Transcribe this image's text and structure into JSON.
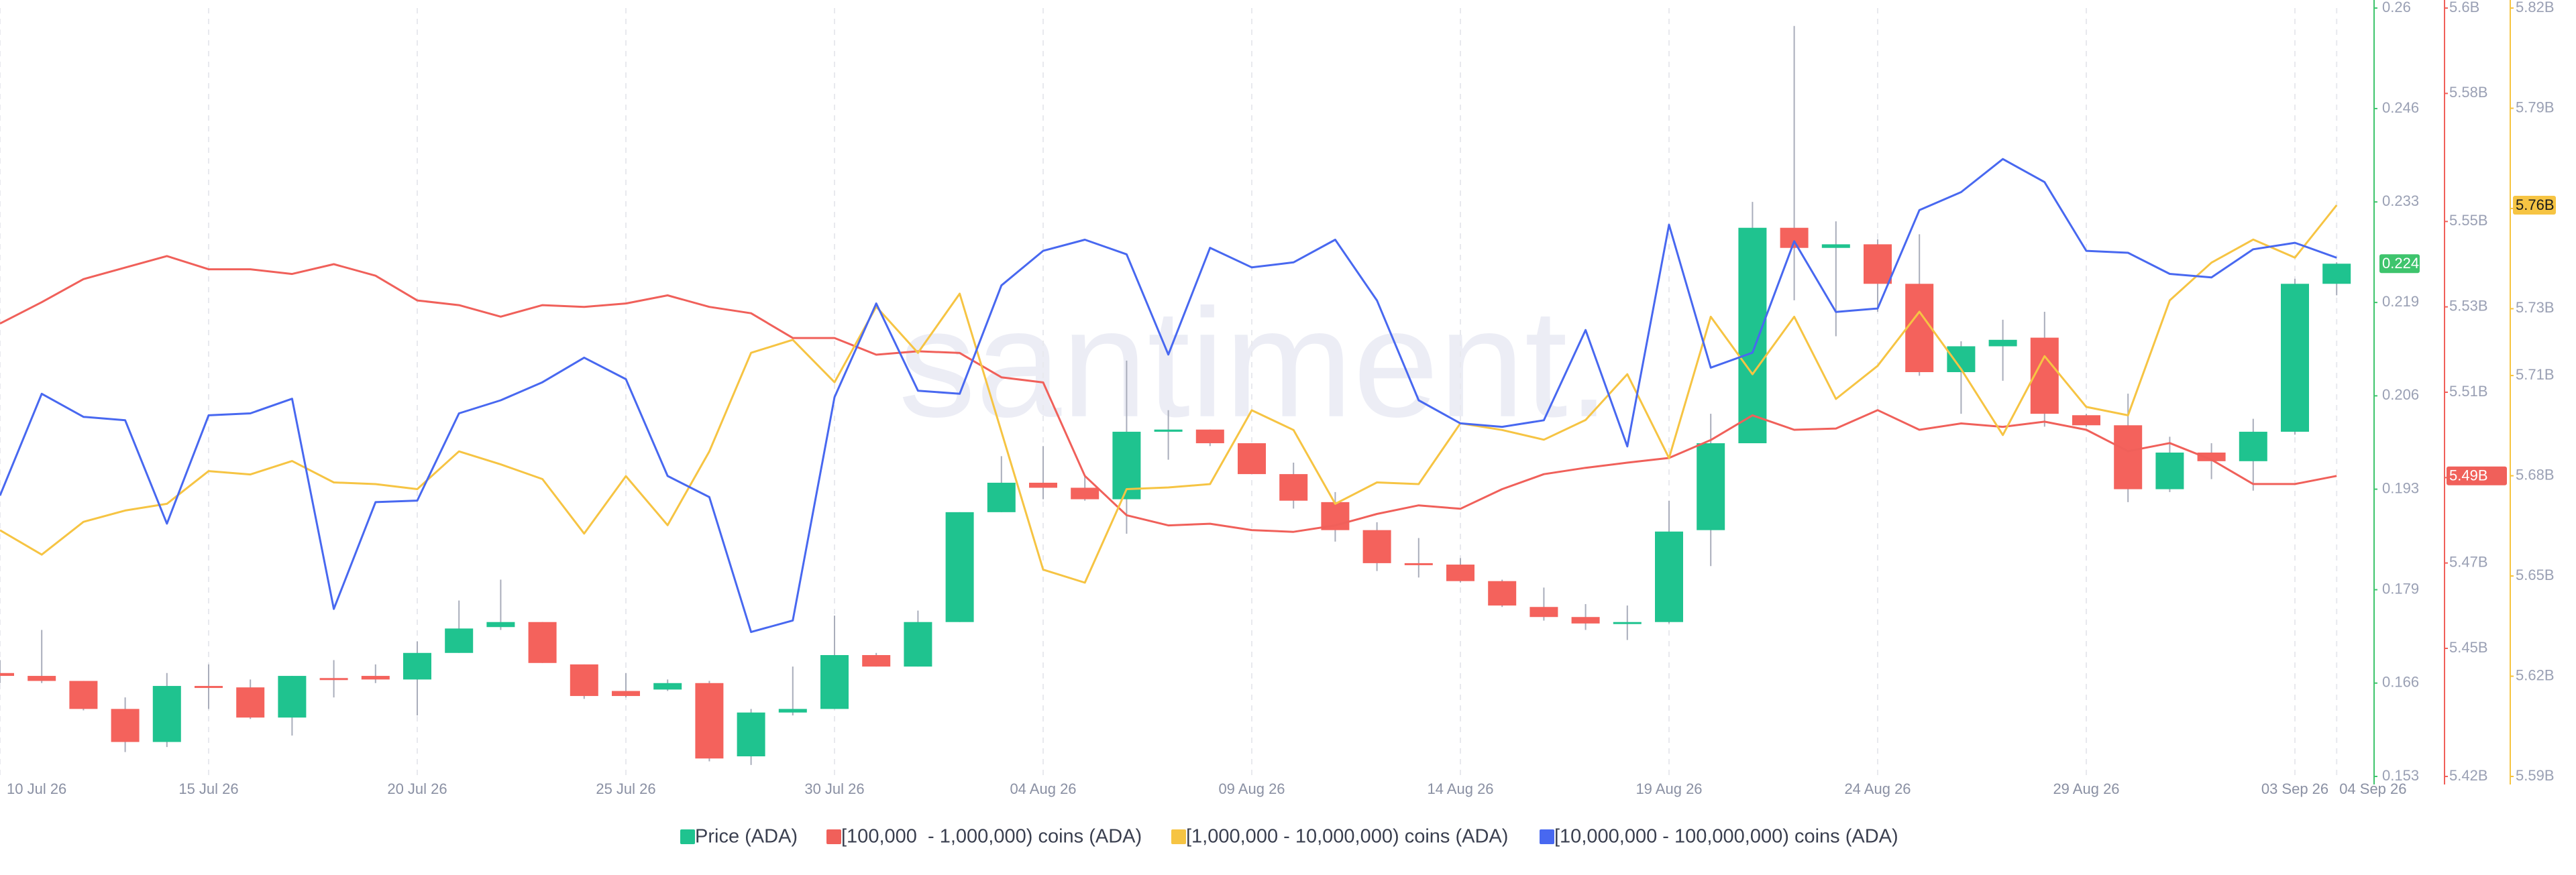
{
  "chart_data": {
    "type": "candlestick",
    "watermark": "santiment.",
    "grid": true,
    "categories": [
      "10 Jul 26",
      null,
      null,
      null,
      null,
      "15 Jul 26",
      null,
      null,
      null,
      null,
      "20 Jul 26",
      null,
      null,
      null,
      null,
      "25 Jul 26",
      null,
      null,
      null,
      null,
      "30 Jul 26",
      null,
      null,
      null,
      null,
      "04 Aug 26",
      null,
      null,
      null,
      null,
      "09 Aug 26",
      null,
      null,
      null,
      null,
      "14 Aug 26",
      null,
      null,
      null,
      null,
      "19 Aug 26",
      null,
      null,
      null,
      null,
      "24 Aug 26",
      null,
      null,
      null,
      null,
      "29 Aug 26",
      null,
      null,
      null,
      null,
      "03 Sep 26",
      "04 Sep 26"
    ],
    "ylim": [
      0.153,
      0.26
    ],
    "yticks": [
      0.26,
      0.246,
      0.233,
      0.219,
      0.206,
      0.193,
      0.179,
      0.166,
      0.153
    ],
    "y2lim": [
      5420000000,
      5600000000
    ],
    "y2ticks": [
      {
        "value": 5600000000,
        "label": "5.6B"
      },
      {
        "value": 5580000000,
        "label": "5.58B"
      },
      {
        "value": 5550000000,
        "label": "5.55B"
      },
      {
        "value": 5530000000,
        "label": "5.53B"
      },
      {
        "value": 5510000000,
        "label": "5.51B"
      },
      {
        "value": 5490000000,
        "label": "5.49B"
      },
      {
        "value": 5470000000,
        "label": "5.47B"
      },
      {
        "value": 5450000000,
        "label": "5.45B"
      },
      {
        "value": 5420000000,
        "label": "5.42B"
      }
    ],
    "y3lim": [
      5590000000,
      5820000000
    ],
    "y3ticks": [
      {
        "value": 5820000000,
        "label": "5.82B"
      },
      {
        "value": 5790000000,
        "label": "5.79B"
      },
      {
        "value": 5760000000,
        "label": "5.76B"
      },
      {
        "value": 5730000000,
        "label": "5.73B"
      },
      {
        "value": 5710000000,
        "label": "5.71B"
      },
      {
        "value": 5680000000,
        "label": "5.68B"
      },
      {
        "value": 5650000000,
        "label": "5.65B"
      },
      {
        "value": 5620000000,
        "label": "5.62B"
      },
      {
        "value": 5590000000,
        "label": "5.59B"
      }
    ],
    "y4lim": [
      11500000000,
      11700000000
    ],
    "series": [
      {
        "name": "Price (ADA)",
        "type": "candlestick",
        "axis": "y",
        "color": "#1fc38f",
        "down_color": "#f4625c",
        "axis_color": "#3ec46d",
        "last_label": "0.224",
        "open": [
          0.1674,
          0.167,
          0.1663,
          0.1624,
          0.1578,
          0.1656,
          0.1654,
          0.1612,
          0.1667,
          0.167,
          0.1665,
          0.1702,
          0.1738,
          0.1745,
          0.1686,
          0.1649,
          0.1651,
          0.166,
          0.1558,
          0.1619,
          0.1624,
          0.1699,
          0.1683,
          0.1745,
          0.1898,
          0.1939,
          0.1932,
          0.1916,
          0.201,
          0.2013,
          0.1994,
          0.1951,
          0.1912,
          0.1873,
          0.1827,
          0.1825,
          0.1802,
          0.1766,
          0.1752,
          0.1743,
          0.1745,
          0.1873,
          0.1994,
          0.2294,
          0.2266,
          0.2271,
          0.2216,
          0.2093,
          0.2129,
          0.2141,
          0.2033,
          0.2019,
          0.193,
          0.1981,
          0.1969,
          0.201,
          0.2216
        ],
        "high": [
          0.1692,
          0.1734,
          0.1663,
          0.164,
          0.1674,
          0.1686,
          0.1665,
          0.167,
          0.1692,
          0.1686,
          0.1718,
          0.1775,
          0.1804,
          0.1745,
          0.1686,
          0.1674,
          0.1665,
          0.1663,
          0.1624,
          0.1683,
          0.1754,
          0.1702,
          0.1761,
          0.1898,
          0.1976,
          0.199,
          0.1949,
          0.2109,
          0.204,
          0.2013,
          0.1994,
          0.1967,
          0.1926,
          0.1884,
          0.1862,
          0.1834,
          0.1804,
          0.1793,
          0.177,
          0.1768,
          0.1914,
          0.2035,
          0.233,
          0.2575,
          0.2303,
          0.2278,
          0.2285,
          0.2136,
          0.2166,
          0.2177,
          0.2035,
          0.2063,
          0.2003,
          0.1994,
          0.2028,
          0.2223,
          0.2246
        ],
        "low": [
          0.166,
          0.166,
          0.1622,
          0.1564,
          0.1571,
          0.1624,
          0.161,
          0.1587,
          0.164,
          0.166,
          0.1615,
          0.1702,
          0.1734,
          0.1688,
          0.1638,
          0.164,
          0.1649,
          0.1551,
          0.1546,
          0.1615,
          0.1624,
          0.1683,
          0.1683,
          0.1745,
          0.1898,
          0.1916,
          0.1914,
          0.1868,
          0.1971,
          0.199,
          0.1951,
          0.1903,
          0.1857,
          0.1816,
          0.1807,
          0.18,
          0.1766,
          0.1747,
          0.1734,
          0.172,
          0.1743,
          0.1823,
          0.1994,
          0.2193,
          0.2143,
          0.2177,
          0.2088,
          0.2035,
          0.2081,
          0.2017,
          0.2017,
          0.1912,
          0.1926,
          0.1944,
          0.1928,
          0.2006,
          0.22
        ],
        "close": [
          0.167,
          0.1663,
          0.1624,
          0.1578,
          0.1656,
          0.1654,
          0.1612,
          0.167,
          0.1665,
          0.1665,
          0.1702,
          0.1736,
          0.1745,
          0.1688,
          0.1642,
          0.1642,
          0.166,
          0.1555,
          0.1619,
          0.1624,
          0.1699,
          0.1683,
          0.1745,
          0.1898,
          0.1939,
          0.1932,
          0.1916,
          0.201,
          0.2013,
          0.1994,
          0.1951,
          0.1914,
          0.1873,
          0.1827,
          0.1825,
          0.1802,
          0.1768,
          0.1752,
          0.1743,
          0.1745,
          0.1871,
          0.1994,
          0.2294,
          0.2266,
          0.2271,
          0.2216,
          0.2093,
          0.2129,
          0.2138,
          0.2035,
          0.2019,
          0.193,
          0.1981,
          0.1969,
          0.201,
          0.2216,
          0.2244
        ]
      },
      {
        "name": "[100,000  - 1,000,000) coins (ADA)",
        "type": "line",
        "axis": "y2",
        "color": "#f0605a",
        "last_label": "5.49B",
        "values": [
          5526100000,
          5531100000,
          5536500000,
          5539200000,
          5541900000,
          5538800000,
          5538800000,
          5537700000,
          5540000000,
          5537300000,
          5531500000,
          5530400000,
          5527700000,
          5530400000,
          5530000000,
          5530800000,
          5532700000,
          5530000000,
          5528500000,
          5522700000,
          5522700000,
          5518800000,
          5519600000,
          5519200000,
          5513500000,
          5512300000,
          5490400000,
          5481200000,
          5478800000,
          5479200000,
          5477700000,
          5477300000,
          5478800000,
          5481500000,
          5483500000,
          5482700000,
          5487300000,
          5490800000,
          5492300000,
          5493500000,
          5494600000,
          5498800000,
          5504600000,
          5501200000,
          5501500000,
          5505800000,
          5501200000,
          5502700000,
          5501900000,
          5503100000,
          5501200000,
          5496200000,
          5498100000,
          5494200000,
          5488500000,
          5488500000,
          5490400000
        ]
      },
      {
        "name": "[1,000,000 - 10,000,000) coins (ADA)",
        "type": "line",
        "axis": "y3",
        "color": "#f6c443",
        "last_label": "5.76B",
        "values": [
          5663700000,
          5656400000,
          5666200000,
          5669600000,
          5671600000,
          5681400000,
          5680400000,
          5684400000,
          5678000000,
          5677500000,
          5676000000,
          5687300000,
          5683400000,
          5679000000,
          5662700000,
          5679900000,
          5665200000,
          5687300000,
          5716800000,
          5720700000,
          5708000000,
          5730600000,
          5716800000,
          5734500000,
          5693200000,
          5651900000,
          5648000000,
          5676000000,
          5676500000,
          5677500000,
          5699600000,
          5693700000,
          5671600000,
          5678000000,
          5677500000,
          5695700000,
          5693700000,
          5690800000,
          5696700000,
          5710400000,
          5685300000,
          5727600000,
          5710400000,
          5727600000,
          5703000000,
          5712900000,
          5729100000,
          5711900000,
          5692200000,
          5715800000,
          5700600000,
          5698100000,
          5732500000,
          5743800000,
          5750700000,
          5745300000,
          5761000000
        ]
      },
      {
        "name": "[10,000,000 - 100,000,000) coins (ADA)",
        "type": "line",
        "axis": "y4",
        "color": "#4868f0",
        "values": [
          11573100000,
          11599600000,
          11593600000,
          11592700000,
          11565800000,
          11594000000,
          11594500000,
          11598300000,
          11543600000,
          11571400000,
          11571800000,
          11594500000,
          11597900000,
          11602600000,
          11609000000,
          11603400000,
          11578200000,
          11572700000,
          11537600000,
          11540600000,
          11598700000,
          11623100000,
          11600400000,
          11599600000,
          11627800000,
          11636800000,
          11639700000,
          11635900000,
          11609800000,
          11637600000,
          11632500000,
          11633800000,
          11639700000,
          11623900000,
          11597900000,
          11591900000,
          11591000000,
          11592700000,
          11616200000,
          11585900000,
          11643600000,
          11606400000,
          11610300000,
          11639300000,
          11620900000,
          11621800000,
          11647400000,
          11652100000,
          11660700000,
          11654700000,
          11636800000,
          11636300000,
          11630800000,
          11629900000,
          11637200000,
          11638900000,
          11635000000
        ]
      }
    ]
  }
}
